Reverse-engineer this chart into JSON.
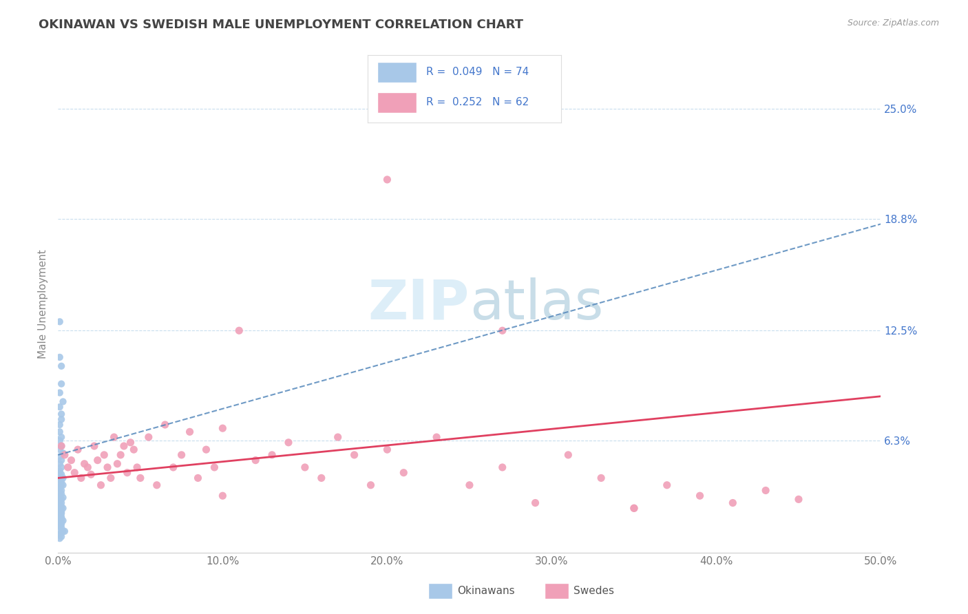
{
  "title": "OKINAWAN VS SWEDISH MALE UNEMPLOYMENT CORRELATION CHART",
  "source": "Source: ZipAtlas.com",
  "ylabel": "Male Unemployment",
  "xlim": [
    0.0,
    0.5
  ],
  "ylim": [
    0.0,
    0.28
  ],
  "yticks": [
    0.063,
    0.125,
    0.188,
    0.25
  ],
  "ytick_labels": [
    "6.3%",
    "12.5%",
    "18.8%",
    "25.0%"
  ],
  "xticks": [
    0.0,
    0.1,
    0.2,
    0.3,
    0.4,
    0.5
  ],
  "xtick_labels": [
    "0.0%",
    "10.0%",
    "20.0%",
    "30.0%",
    "40.0%",
    "50.0%"
  ],
  "okinawan_color": "#a8c8e8",
  "swedish_color": "#f0a0b8",
  "okinawan_line_color": "#5588bb",
  "swedish_line_color": "#e04060",
  "background_color": "#ffffff",
  "grid_color": "#c8dded",
  "title_color": "#444444",
  "legend_text_color": "#4477cc",
  "R_okinawan": 0.049,
  "N_okinawan": 74,
  "R_swedish": 0.252,
  "N_swedish": 62,
  "okinawan_line_x0": 0.0,
  "okinawan_line_y0": 0.055,
  "okinawan_line_x1": 0.5,
  "okinawan_line_y1": 0.185,
  "swedish_line_x0": 0.0,
  "swedish_line_y0": 0.042,
  "swedish_line_x1": 0.5,
  "swedish_line_y1": 0.088,
  "okinawan_x": [
    0.001,
    0.001,
    0.002,
    0.002,
    0.001,
    0.003,
    0.001,
    0.002,
    0.002,
    0.001,
    0.001,
    0.002,
    0.001,
    0.002,
    0.001,
    0.003,
    0.001,
    0.002,
    0.001,
    0.002,
    0.001,
    0.001,
    0.002,
    0.001,
    0.003,
    0.001,
    0.002,
    0.001,
    0.002,
    0.001,
    0.001,
    0.002,
    0.001,
    0.002,
    0.001,
    0.003,
    0.001,
    0.002,
    0.001,
    0.002,
    0.001,
    0.001,
    0.002,
    0.001,
    0.003,
    0.001,
    0.002,
    0.001,
    0.002,
    0.001,
    0.001,
    0.002,
    0.001,
    0.002,
    0.001,
    0.003,
    0.001,
    0.002,
    0.001,
    0.002,
    0.001,
    0.001,
    0.002,
    0.001,
    0.003,
    0.004,
    0.002,
    0.001,
    0.002,
    0.001,
    0.002,
    0.003,
    0.002,
    0.001
  ],
  "okinawan_y": [
    0.13,
    0.11,
    0.105,
    0.095,
    0.09,
    0.085,
    0.082,
    0.078,
    0.075,
    0.072,
    0.068,
    0.065,
    0.063,
    0.06,
    0.058,
    0.056,
    0.054,
    0.052,
    0.05,
    0.048,
    0.046,
    0.045,
    0.044,
    0.043,
    0.042,
    0.041,
    0.04,
    0.039,
    0.038,
    0.037,
    0.036,
    0.035,
    0.034,
    0.033,
    0.032,
    0.031,
    0.031,
    0.03,
    0.029,
    0.028,
    0.027,
    0.027,
    0.026,
    0.025,
    0.025,
    0.024,
    0.023,
    0.023,
    0.022,
    0.021,
    0.021,
    0.02,
    0.02,
    0.019,
    0.019,
    0.018,
    0.018,
    0.017,
    0.017,
    0.016,
    0.016,
    0.015,
    0.014,
    0.013,
    0.012,
    0.012,
    0.011,
    0.01,
    0.009,
    0.008,
    0.042,
    0.038,
    0.025,
    0.02
  ],
  "swedish_x": [
    0.002,
    0.004,
    0.006,
    0.008,
    0.01,
    0.012,
    0.014,
    0.016,
    0.018,
    0.02,
    0.022,
    0.024,
    0.026,
    0.028,
    0.03,
    0.032,
    0.034,
    0.036,
    0.038,
    0.04,
    0.042,
    0.044,
    0.046,
    0.048,
    0.05,
    0.055,
    0.06,
    0.065,
    0.07,
    0.075,
    0.08,
    0.085,
    0.09,
    0.095,
    0.1,
    0.11,
    0.12,
    0.13,
    0.14,
    0.15,
    0.16,
    0.17,
    0.18,
    0.19,
    0.2,
    0.21,
    0.23,
    0.25,
    0.27,
    0.29,
    0.31,
    0.33,
    0.35,
    0.37,
    0.39,
    0.41,
    0.43,
    0.45,
    0.35,
    0.1,
    0.27,
    0.2
  ],
  "swedish_y": [
    0.06,
    0.055,
    0.048,
    0.052,
    0.045,
    0.058,
    0.042,
    0.05,
    0.048,
    0.044,
    0.06,
    0.052,
    0.038,
    0.055,
    0.048,
    0.042,
    0.065,
    0.05,
    0.055,
    0.06,
    0.045,
    0.062,
    0.058,
    0.048,
    0.042,
    0.065,
    0.038,
    0.072,
    0.048,
    0.055,
    0.068,
    0.042,
    0.058,
    0.048,
    0.07,
    0.125,
    0.052,
    0.055,
    0.062,
    0.048,
    0.042,
    0.065,
    0.055,
    0.038,
    0.058,
    0.045,
    0.065,
    0.038,
    0.048,
    0.028,
    0.055,
    0.042,
    0.025,
    0.038,
    0.032,
    0.028,
    0.035,
    0.03,
    0.025,
    0.032,
    0.125,
    0.21
  ]
}
